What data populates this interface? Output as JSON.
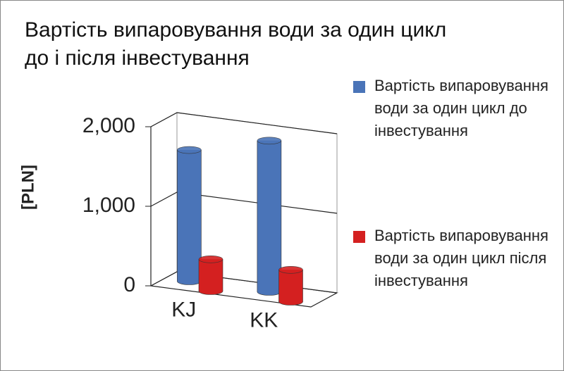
{
  "chart_data": {
    "type": "bar3d",
    "title": "Вартість випаровування води за один цикл до і після інвестування",
    "y_label": "[PLN]",
    "categories": [
      "KJ",
      "KK"
    ],
    "series": [
      {
        "name": "Вартість випаровування води за один цикл до інвестування",
        "color": "#4a74b8",
        "values": [
          1650,
          1900
        ]
      },
      {
        "name": "Вартість випаровування води за один цикл після інвестування",
        "color": "#d42020",
        "values": [
          400,
          400
        ]
      }
    ],
    "ylim": [
      0,
      2000
    ],
    "yticks": [
      {
        "value": 0,
        "label": "0"
      },
      {
        "value": 1000,
        "label": "1,000"
      },
      {
        "value": 2000,
        "label": "2,000"
      }
    ],
    "grid": true,
    "legend": "right"
  }
}
